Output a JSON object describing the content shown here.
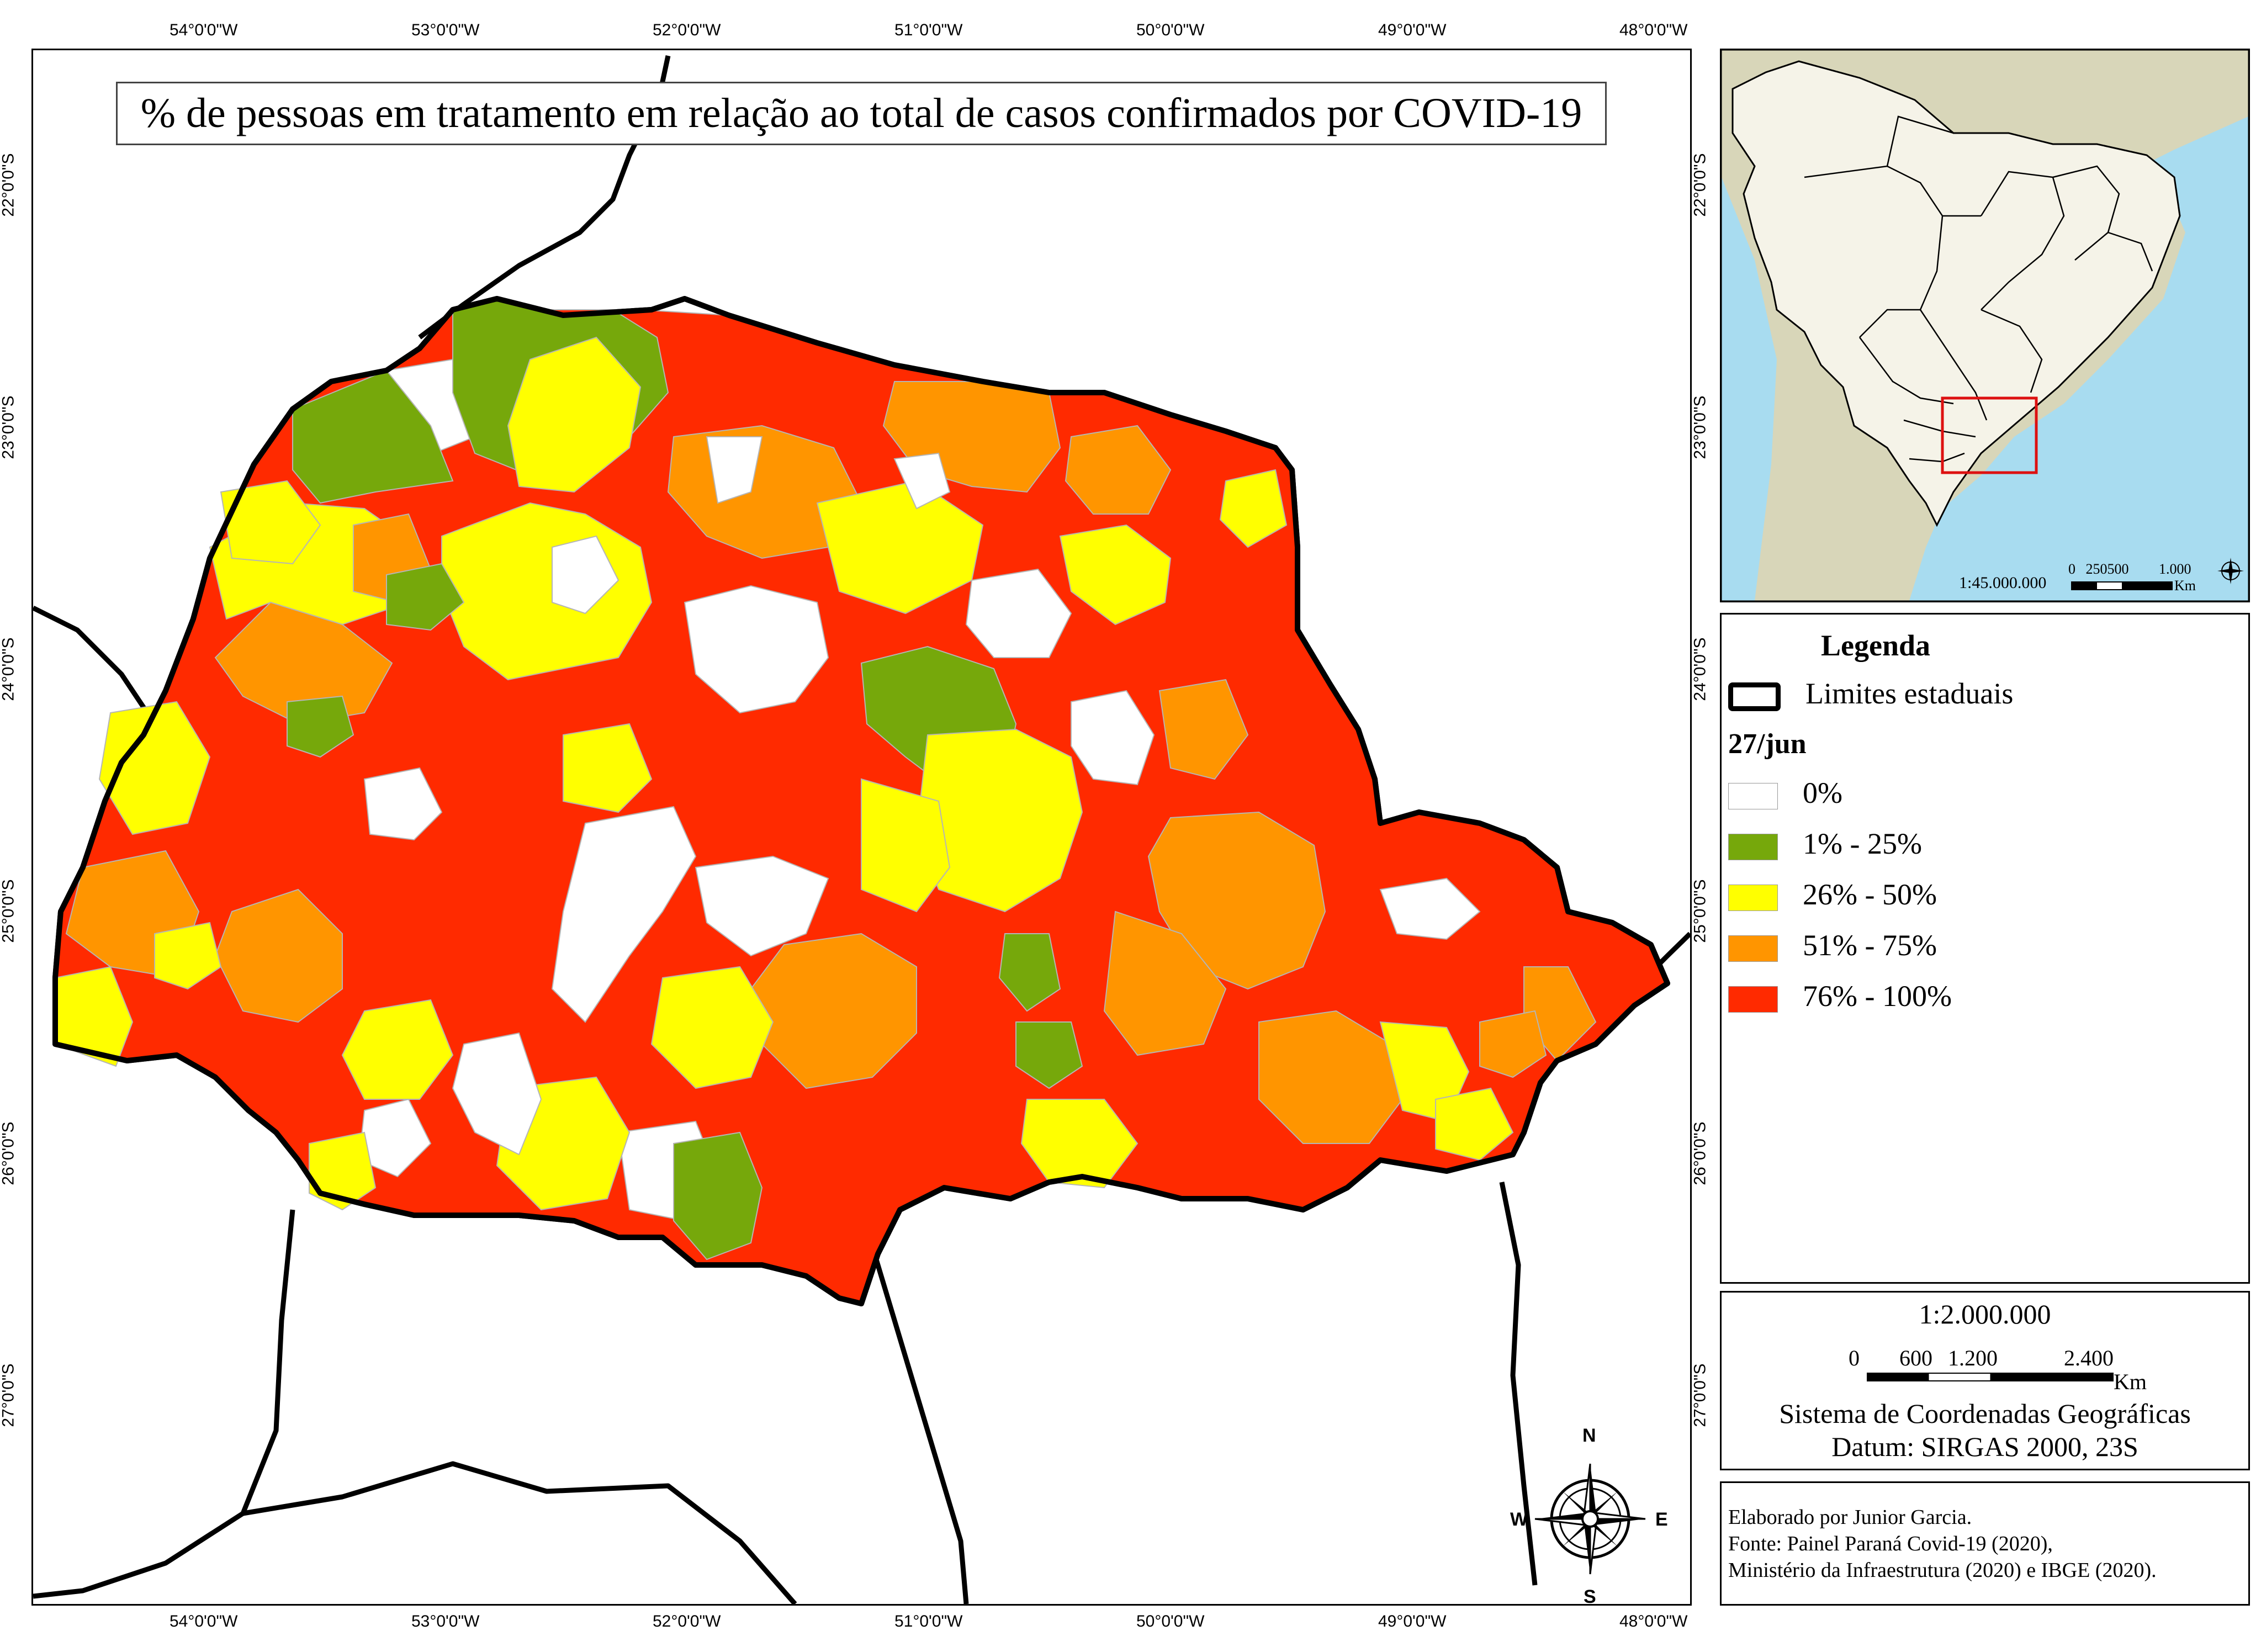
{
  "title": "% de pessoas em tratamento em relação ao total de casos confirmados por COVID-19",
  "grid": {
    "longitudes": [
      "54°0'0\"W",
      "53°0'0\"W",
      "52°0'0\"W",
      "51°0'0\"W",
      "50°0'0\"W",
      "49°0'0\"W",
      "48°0'0\"W"
    ],
    "latitudes": [
      "22°0'0\"S",
      "23°0'0\"S",
      "24°0'0\"S",
      "25°0'0\"S",
      "26°0'0\"S",
      "27°0'0\"S"
    ]
  },
  "inset": {
    "scale_ratio": "1:45.000.000",
    "scale_ticks": [
      "0",
      "250500",
      "1.000"
    ],
    "scale_unit": "Km",
    "colors": {
      "ocean": "#a8dcf0",
      "brazil": "#f5f3e8",
      "neighbors": "#d8d6b9",
      "highlight": "#dd1111"
    }
  },
  "legend": {
    "title": "Legenda",
    "boundary_label": "Limites estaduais",
    "date_label": "27/jun",
    "classes": [
      {
        "label": "0%",
        "color": "#ffffff"
      },
      {
        "label": "1% - 25%",
        "color": "#76a80b"
      },
      {
        "label": "26% - 50%",
        "color": "#ffff00"
      },
      {
        "label": "51% - 75%",
        "color": "#ff9500"
      },
      {
        "label": "76% - 100%",
        "color": "#ff2a00"
      }
    ]
  },
  "scale": {
    "ratio": "1:2.000.000",
    "ticks": [
      "0",
      "600",
      "1.200",
      "2.400"
    ],
    "unit": "Km",
    "crs_line1": "Sistema de Coordenadas Geográficas",
    "crs_line2": "Datum: SIRGAS 2000, 23S"
  },
  "credits": [
    "Elaborado por Junior Garcia.",
    "Fonte: Painel Paraná Covid-19 (2020),",
    "Ministério da Infraestrutura (2020) e IBGE (2020)."
  ],
  "north_arrow": {
    "n": "N",
    "s": "S",
    "e": "E",
    "w": "W",
    "icon": "compass-rose-icon"
  }
}
